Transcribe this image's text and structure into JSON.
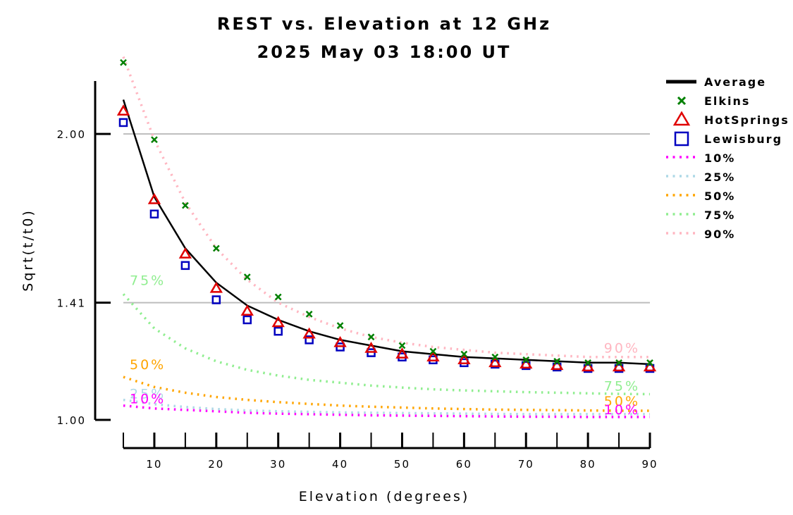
{
  "chart_data": {
    "type": "line",
    "title": "REST vs. Elevation at 12 GHz",
    "subtitle": "2025 May 03 18:00 UT",
    "xlabel": "Elevation (degrees)",
    "ylabel": "Sqrt(t/t0)",
    "xlim": [
      5,
      90
    ],
    "ylim": [
      1.0,
      2.2
    ],
    "x_ticks": [
      10,
      20,
      30,
      40,
      50,
      60,
      70,
      80,
      90
    ],
    "x_tick_labels": [
      "10",
      "20",
      "30",
      "40",
      "50",
      "60",
      "70",
      "80",
      "90"
    ],
    "y_ticks": [
      1.0,
      1.41,
      2.0
    ],
    "y_tick_labels": [
      "1.00",
      "1.41",
      "2.00"
    ],
    "gridlines_y": [
      1.41,
      2.0
    ],
    "legend_position": "top-right",
    "x": [
      5,
      10,
      15,
      20,
      25,
      30,
      35,
      40,
      45,
      50,
      55,
      60,
      65,
      70,
      75,
      80,
      85,
      90
    ],
    "series": [
      {
        "name": "Average",
        "style": "solid-line",
        "color": "#000000",
        "values": [
          2.12,
          1.78,
          1.6,
          1.48,
          1.4,
          1.35,
          1.31,
          1.28,
          1.26,
          1.24,
          1.23,
          1.22,
          1.215,
          1.21,
          1.205,
          1.2,
          1.2,
          1.195
        ]
      },
      {
        "name": "Elkins",
        "style": "x-marker",
        "color": "#008000",
        "values": [
          2.25,
          1.98,
          1.75,
          1.6,
          1.5,
          1.43,
          1.37,
          1.33,
          1.29,
          1.26,
          1.24,
          1.23,
          1.22,
          1.21,
          1.205,
          1.2,
          1.2,
          1.2
        ]
      },
      {
        "name": "HotSprings",
        "style": "triangle-marker",
        "color": "#e00000",
        "values": [
          2.08,
          1.77,
          1.58,
          1.46,
          1.38,
          1.34,
          1.3,
          1.27,
          1.25,
          1.23,
          1.22,
          1.21,
          1.2,
          1.195,
          1.19,
          1.185,
          1.185,
          1.185
        ]
      },
      {
        "name": "Lewisburg",
        "style": "square-marker",
        "color": "#0000c0",
        "values": [
          2.04,
          1.72,
          1.54,
          1.42,
          1.35,
          1.31,
          1.28,
          1.255,
          1.235,
          1.22,
          1.21,
          1.2,
          1.195,
          1.19,
          1.185,
          1.18,
          1.18,
          1.18
        ]
      },
      {
        "name": "10%",
        "style": "dotted-line",
        "color": "#ff00ff",
        "values": [
          1.05,
          1.04,
          1.035,
          1.03,
          1.025,
          1.022,
          1.02,
          1.018,
          1.016,
          1.015,
          1.014,
          1.013,
          1.012,
          1.011,
          1.011,
          1.01,
          1.01,
          1.01
        ]
      },
      {
        "name": "25%",
        "style": "dotted-line",
        "color": "#add8e6",
        "values": [
          1.07,
          1.055,
          1.045,
          1.038,
          1.033,
          1.03,
          1.028,
          1.026,
          1.025,
          1.024,
          1.023,
          1.022,
          1.021,
          1.02,
          1.02,
          1.02,
          1.02,
          1.02
        ]
      },
      {
        "name": "50%",
        "style": "dotted-line",
        "color": "#ffa500",
        "values": [
          1.15,
          1.115,
          1.095,
          1.08,
          1.07,
          1.062,
          1.056,
          1.05,
          1.046,
          1.043,
          1.04,
          1.038,
          1.036,
          1.035,
          1.034,
          1.033,
          1.032,
          1.032
        ]
      },
      {
        "name": "75%",
        "style": "dotted-line",
        "color": "#90ee90",
        "values": [
          1.44,
          1.32,
          1.25,
          1.205,
          1.175,
          1.155,
          1.14,
          1.13,
          1.12,
          1.113,
          1.107,
          1.103,
          1.1,
          1.097,
          1.095,
          1.093,
          1.091,
          1.09
        ]
      },
      {
        "name": "90%",
        "style": "dotted-line",
        "color": "#ffb6c1",
        "values": [
          2.27,
          1.98,
          1.76,
          1.6,
          1.49,
          1.41,
          1.36,
          1.32,
          1.29,
          1.27,
          1.255,
          1.245,
          1.235,
          1.23,
          1.225,
          1.22,
          1.22,
          1.22
        ]
      }
    ],
    "curve_labels": [
      {
        "text": "75%",
        "series": "75%",
        "x": 5
      },
      {
        "text": "50%",
        "series": "50%",
        "x": 5
      },
      {
        "text": "25%",
        "series": "25%",
        "x": 5
      },
      {
        "text": "10%",
        "series": "10%",
        "x": 5
      },
      {
        "text": "90%",
        "series": "90%",
        "x": 90
      },
      {
        "text": "75%",
        "series": "75%",
        "x": 90
      },
      {
        "text": "50%",
        "series": "50%",
        "x": 90
      },
      {
        "text": "10%",
        "series": "10%",
        "x": 90
      }
    ]
  }
}
